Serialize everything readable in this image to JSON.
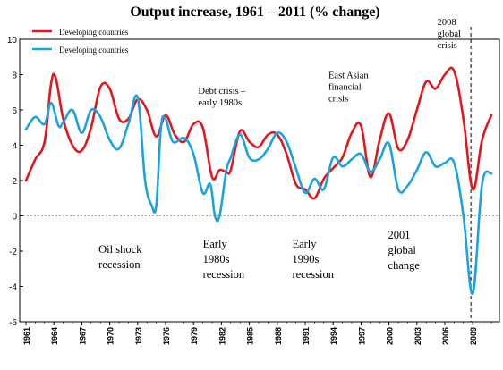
{
  "chart_data": {
    "type": "line",
    "title": "Output increase, 1961 – 2011 (% change)",
    "ylim": [
      -6,
      10
    ],
    "xlim": [
      1961,
      2011
    ],
    "y_ticks": [
      10,
      8,
      6,
      4,
      2,
      0,
      -2,
      -4,
      -6
    ],
    "x_ticks": [
      1961,
      1964,
      1967,
      1970,
      1973,
      1976,
      1979,
      1982,
      1985,
      1988,
      1991,
      1994,
      1997,
      2000,
      2003,
      2006,
      2009
    ],
    "grid": false,
    "zero_line": "dashed",
    "legend": "top-left",
    "series": [
      {
        "name": "Developing countries",
        "color": "#e8141b",
        "points": [
          [
            1961,
            2.0
          ],
          [
            1962,
            3.2
          ],
          [
            1963,
            4.2
          ],
          [
            1963.7,
            7.5
          ],
          [
            1964.2,
            7.8
          ],
          [
            1965,
            5.5
          ],
          [
            1966,
            4.0
          ],
          [
            1967,
            3.7
          ],
          [
            1968,
            5.0
          ],
          [
            1969,
            7.3
          ],
          [
            1970,
            7.2
          ],
          [
            1971,
            5.5
          ],
          [
            1972,
            5.5
          ],
          [
            1973,
            6.6
          ],
          [
            1974,
            6.0
          ],
          [
            1975,
            4.5
          ],
          [
            1976,
            5.7
          ],
          [
            1977,
            4.6
          ],
          [
            1978,
            4.2
          ],
          [
            1979,
            5.2
          ],
          [
            1980,
            5.0
          ],
          [
            1981,
            2.2
          ],
          [
            1981.8,
            2.6
          ],
          [
            1982.5,
            2.5
          ],
          [
            1983,
            2.6
          ],
          [
            1984,
            4.8
          ],
          [
            1985,
            4.2
          ],
          [
            1986,
            3.9
          ],
          [
            1987,
            4.6
          ],
          [
            1988,
            4.6
          ],
          [
            1989,
            3.5
          ],
          [
            1990,
            1.8
          ],
          [
            1991,
            1.5
          ],
          [
            1992,
            1.0
          ],
          [
            1993,
            2.1
          ],
          [
            1994,
            2.7
          ],
          [
            1995,
            3.3
          ],
          [
            1996,
            4.7
          ],
          [
            1997,
            5.1
          ],
          [
            1998,
            2.2
          ],
          [
            1999,
            4.3
          ],
          [
            2000,
            5.8
          ],
          [
            2001,
            3.8
          ],
          [
            2002,
            4.3
          ],
          [
            2003,
            6.0
          ],
          [
            2004,
            7.6
          ],
          [
            2005,
            7.2
          ],
          [
            2006,
            8.0
          ],
          [
            2007,
            8.2
          ],
          [
            2008,
            5.5
          ],
          [
            2009,
            1.5
          ],
          [
            2010,
            4.3
          ],
          [
            2011,
            5.7
          ]
        ]
      },
      {
        "name": "Developing countries",
        "color": "#1aa3e2",
        "points": [
          [
            1961,
            4.9
          ],
          [
            1962,
            5.6
          ],
          [
            1963,
            5.2
          ],
          [
            1963.7,
            6.4
          ],
          [
            1964.5,
            5.1
          ],
          [
            1965,
            5.3
          ],
          [
            1966,
            6.0
          ],
          [
            1967,
            4.7
          ],
          [
            1968,
            6.0
          ],
          [
            1969,
            5.6
          ],
          [
            1970,
            4.3
          ],
          [
            1971,
            3.8
          ],
          [
            1972,
            5.2
          ],
          [
            1973,
            6.7
          ],
          [
            1973.8,
            2.0
          ],
          [
            1974.5,
            0.6
          ],
          [
            1975,
            0.6
          ],
          [
            1975.5,
            5.0
          ],
          [
            1976,
            5.5
          ],
          [
            1976.8,
            4.2
          ],
          [
            1978,
            4.4
          ],
          [
            1979,
            3.5
          ],
          [
            1980,
            1.3
          ],
          [
            1980.8,
            1.8
          ],
          [
            1981.3,
            0.0
          ],
          [
            1981.8,
            0.0
          ],
          [
            1982.5,
            2.5
          ],
          [
            1983,
            3.3
          ],
          [
            1984,
            4.6
          ],
          [
            1985,
            3.3
          ],
          [
            1986,
            3.2
          ],
          [
            1987,
            3.8
          ],
          [
            1988,
            4.7
          ],
          [
            1989,
            4.2
          ],
          [
            1990,
            2.7
          ],
          [
            1991,
            1.3
          ],
          [
            1992,
            2.1
          ],
          [
            1993,
            1.5
          ],
          [
            1994,
            3.3
          ],
          [
            1995,
            2.8
          ],
          [
            1996,
            3.2
          ],
          [
            1997,
            3.5
          ],
          [
            1998,
            2.5
          ],
          [
            1999,
            3.2
          ],
          [
            2000,
            4.1
          ],
          [
            2001,
            1.5
          ],
          [
            2002,
            1.7
          ],
          [
            2003,
            2.6
          ],
          [
            2004,
            3.6
          ],
          [
            2005,
            2.8
          ],
          [
            2006,
            3.0
          ],
          [
            2007,
            3.0
          ],
          [
            2008,
            0.0
          ],
          [
            2009,
            -4.4
          ],
          [
            2010,
            1.8
          ],
          [
            2011,
            2.4
          ]
        ]
      }
    ],
    "event_line": {
      "x": 2008.8,
      "style": "dashed"
    },
    "annotations": [
      {
        "id": "oil",
        "lines": [
          "Oil shock",
          "recession"
        ],
        "x": 1968.8,
        "y": -2.1
      },
      {
        "id": "early80",
        "lines": [
          "Early",
          "1980s",
          "recession"
        ],
        "x": 1980.0,
        "y": -1.8
      },
      {
        "id": "early90",
        "lines": [
          "Early",
          "1990s",
          "recession"
        ],
        "x": 1989.6,
        "y": -1.8
      },
      {
        "id": "change2001",
        "lines": [
          "2001",
          "global",
          "change"
        ],
        "x": 1999.9,
        "y": -1.3
      },
      {
        "id": "debt",
        "lines": [
          "Debt crisis –",
          "early 1980s"
        ],
        "x": 1979.5,
        "y": 6.9
      },
      {
        "id": "eastasia",
        "lines": [
          "East Asian",
          "financial",
          "crisis"
        ],
        "x": 1993.5,
        "y": 7.8
      },
      {
        "id": "global2008",
        "lines": [
          "2008",
          "global",
          "crisis"
        ],
        "x": 2005.2,
        "y": 10.8
      }
    ]
  }
}
